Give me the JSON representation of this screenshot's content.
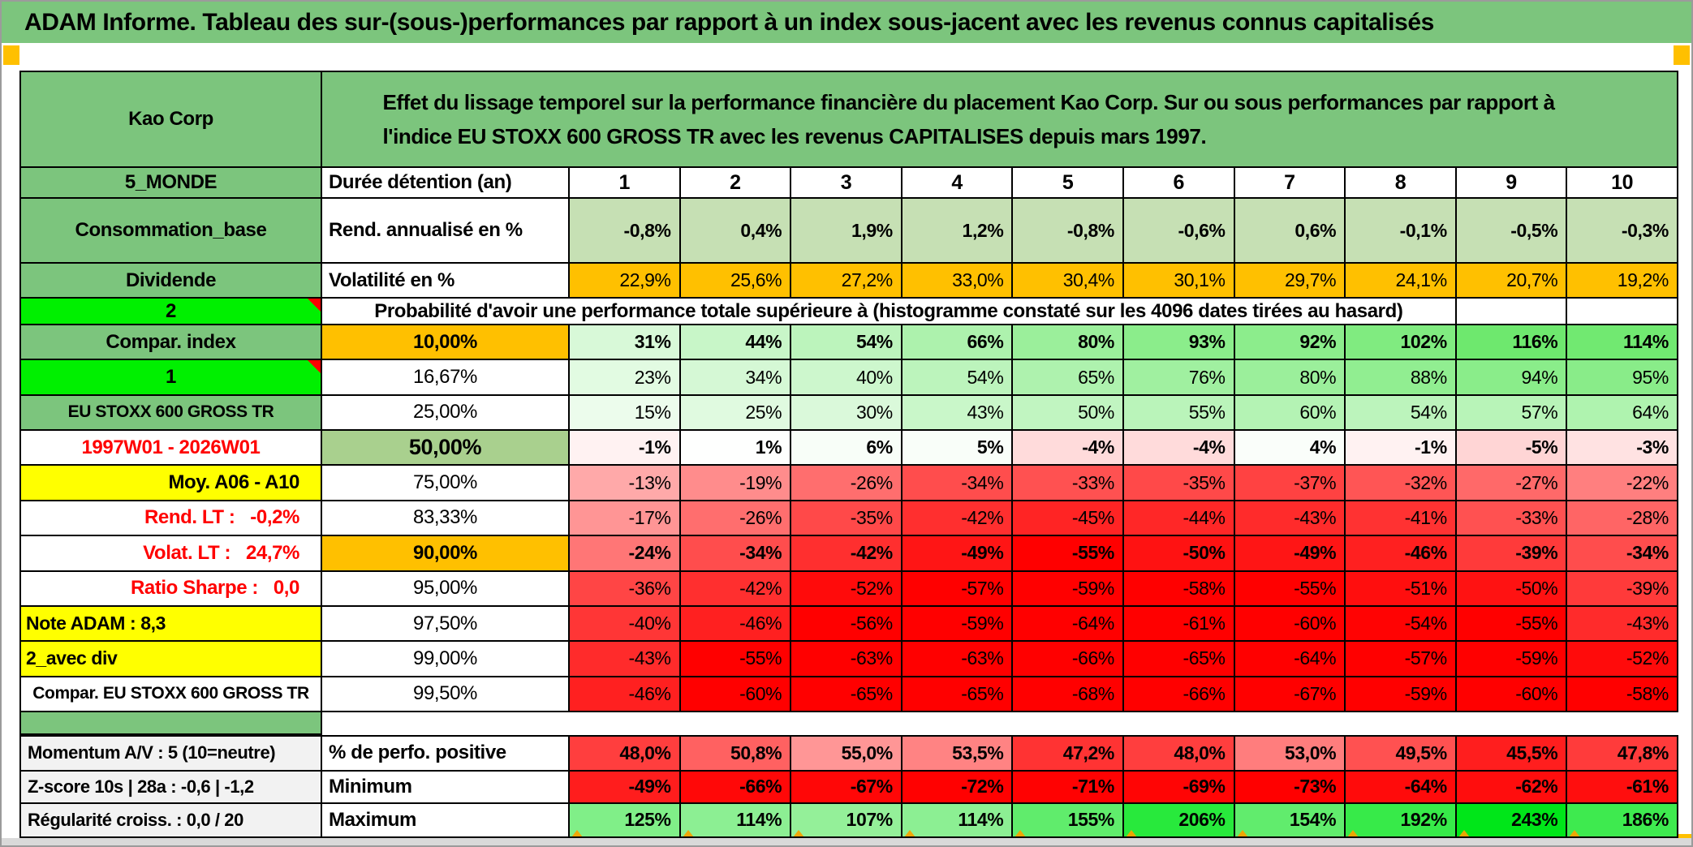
{
  "title": "ADAM Informe. Tableau des sur-(sous-)performances par rapport à un index sous-jacent avec les revenus connus capitalisés",
  "colors": {
    "green": "#7CC57D",
    "bright_green": "#00F000",
    "orange": "#FFC000",
    "yellow": "#FFFF00",
    "olive": "#A9D08E",
    "light_green": "#C6E0B4",
    "gray_label": "#F2F2F2",
    "red": "#FF0000",
    "strip_gray": "#D9D9D9",
    "marker_orange": "#FFC000"
  },
  "grid": {
    "columns": [
      "1",
      "2",
      "3",
      "4",
      "5",
      "6",
      "7",
      "8",
      "9",
      "10"
    ],
    "rows": [
      {
        "id": "header",
        "type": "header",
        "label": "Kao Corp",
        "description": "Effet du lissage temporel sur la performance financière du placement Kao Corp. Sur ou sous performances par rapport à l'indice EU STOXX 600 GROSS TR avec les revenus CAPITALISES depuis mars 1997."
      },
      {
        "id": "duration",
        "label": "5_MONDE",
        "lstyle": "green",
        "colb": "Durée détention (an)",
        "cbstyle": "left-bold",
        "cells": [
          "1",
          "2",
          "3",
          "4",
          "5",
          "6",
          "7",
          "8",
          "9",
          "10"
        ],
        "scale": "none",
        "bold": true,
        "align": "center"
      },
      {
        "id": "rend-annualise",
        "label": "Consommation_base",
        "lstyle": "green",
        "colb": "Rend. annualisé en %",
        "cbstyle": "left-bold",
        "cells": [
          "-0,8%",
          "0,4%",
          "1,9%",
          "1,2%",
          "-0,8%",
          "-0,6%",
          "0,6%",
          "-0,1%",
          "-0,5%",
          "-0,3%"
        ],
        "scale": "lightgreen",
        "bold": true
      },
      {
        "id": "volatilite",
        "label": "Dividende",
        "lstyle": "green",
        "colb": "Volatilité en %",
        "cbstyle": "left-bold",
        "cells": [
          "22,9%",
          "25,6%",
          "27,2%",
          "33,0%",
          "30,4%",
          "30,1%",
          "29,7%",
          "24,1%",
          "20,7%",
          "19,2%"
        ],
        "scale": "orange",
        "bold": false
      },
      {
        "id": "prob-header",
        "type": "probheader",
        "label": "2",
        "lstyle": "bright",
        "flag": true,
        "text": "Probabilité d'avoir une performance totale supérieure à (histogramme constaté sur les 4096 dates tirées au hasard)"
      },
      {
        "id": "p10",
        "label": "Compar. index",
        "lstyle": "green",
        "colb": "10,00%",
        "cbstyle": "orange",
        "values": [
          31,
          44,
          54,
          66,
          80,
          93,
          92,
          102,
          116,
          114
        ],
        "scale": "block",
        "bold": true
      },
      {
        "id": "p16",
        "label": "1",
        "lstyle": "bright",
        "flag": true,
        "colb": "16,67%",
        "cbstyle": "center",
        "values": [
          23,
          34,
          40,
          54,
          65,
          76,
          80,
          88,
          94,
          95
        ],
        "scale": "block",
        "bold": false
      },
      {
        "id": "p25",
        "label": "EU STOXX 600 GROSS TR",
        "lstyle": "green small",
        "colb": "25,00%",
        "cbstyle": "center",
        "values": [
          15,
          25,
          30,
          43,
          50,
          55,
          60,
          54,
          57,
          64
        ],
        "scale": "block",
        "bold": false
      },
      {
        "id": "p50",
        "label": "1997W01 - 2026W01",
        "lstyle": "red-center",
        "colb": "50,00%",
        "cbstyle": "olive",
        "values": [
          -1,
          1,
          6,
          5,
          -4,
          -4,
          4,
          -1,
          -5,
          -3
        ],
        "scale": "block",
        "bold": true
      },
      {
        "id": "p75",
        "label": "Moy. A06 - A10",
        "lstyle": "yellow-right",
        "colb": "75,00%",
        "cbstyle": "center",
        "values": [
          -13,
          -19,
          -26,
          -34,
          -33,
          -35,
          -37,
          -32,
          -27,
          -22
        ],
        "scale": "block",
        "bold": false
      },
      {
        "id": "p83",
        "label": "Rend. LT :   -0,2%",
        "lstyle": "red-right",
        "colb": "83,33%",
        "cbstyle": "center",
        "values": [
          -17,
          -26,
          -35,
          -42,
          -45,
          -44,
          -43,
          -41,
          -33,
          -28
        ],
        "scale": "block",
        "bold": false
      },
      {
        "id": "p90",
        "label": "Volat. LT :   24,7%",
        "lstyle": "red-right",
        "colb": "90,00%",
        "cbstyle": "orange",
        "values": [
          -24,
          -34,
          -42,
          -49,
          -55,
          -50,
          -49,
          -46,
          -39,
          -34
        ],
        "scale": "block",
        "bold": true
      },
      {
        "id": "p95",
        "label": "Ratio Sharpe :   0,0",
        "lstyle": "red-right",
        "colb": "95,00%",
        "cbstyle": "center",
        "values": [
          -36,
          -42,
          -52,
          -57,
          -59,
          -58,
          -55,
          -51,
          -50,
          -39
        ],
        "scale": "block",
        "bold": false
      },
      {
        "id": "p97",
        "label": "Note ADAM : 8,3",
        "lstyle": "yellow-left",
        "colb": "97,50%",
        "cbstyle": "center",
        "values": [
          -40,
          -46,
          -56,
          -59,
          -64,
          -61,
          -60,
          -54,
          -55,
          -43
        ],
        "scale": "block",
        "bold": false
      },
      {
        "id": "p99",
        "label": "2_avec div",
        "lstyle": "yellow-left",
        "colb": "99,00%",
        "cbstyle": "center",
        "values": [
          -43,
          -55,
          -63,
          -63,
          -66,
          -65,
          -64,
          -57,
          -59,
          -52
        ],
        "scale": "block",
        "bold": false
      },
      {
        "id": "p995",
        "label": "Compar. EU STOXX 600 GROSS TR",
        "lstyle": "white-center small",
        "colb": "99,50%",
        "cbstyle": "center",
        "values": [
          -46,
          -60,
          -65,
          -65,
          -68,
          -66,
          -67,
          -59,
          -60,
          -58
        ],
        "scale": "block",
        "bold": false
      },
      {
        "id": "spacer",
        "type": "spacer"
      },
      {
        "id": "perfo",
        "label": "Momentum A/V : 5 (10=neutre)",
        "lstyle": "gray",
        "colb": "% de perfo. positive",
        "cbstyle": "left-bold",
        "cells": [
          "48,0%",
          "50,8%",
          "55,0%",
          "53,5%",
          "47,2%",
          "48,0%",
          "53,0%",
          "49,5%",
          "45,5%",
          "47,8%"
        ],
        "values": [
          48.0,
          50.8,
          55.0,
          53.5,
          47.2,
          48.0,
          53.0,
          49.5,
          45.5,
          47.8
        ],
        "scale": "perfo",
        "bold": true,
        "topborder": true
      },
      {
        "id": "minimum",
        "label": "Z-score 10s | 28a : -0,6 | -1,2",
        "lstyle": "gray",
        "colb": "Minimum",
        "cbstyle": "left-bold",
        "values": [
          -49,
          -66,
          -67,
          -72,
          -71,
          -69,
          -73,
          -64,
          -62,
          -61
        ],
        "scale": "min",
        "bold": true
      },
      {
        "id": "maximum",
        "label": "Régularité croiss. : 0,0 / 20",
        "lstyle": "gray",
        "colb": "Maximum",
        "cbstyle": "left-bold",
        "values": [
          125,
          114,
          107,
          114,
          155,
          206,
          154,
          192,
          243,
          186
        ],
        "scale": "max",
        "bold": true,
        "omark": true
      }
    ]
  }
}
